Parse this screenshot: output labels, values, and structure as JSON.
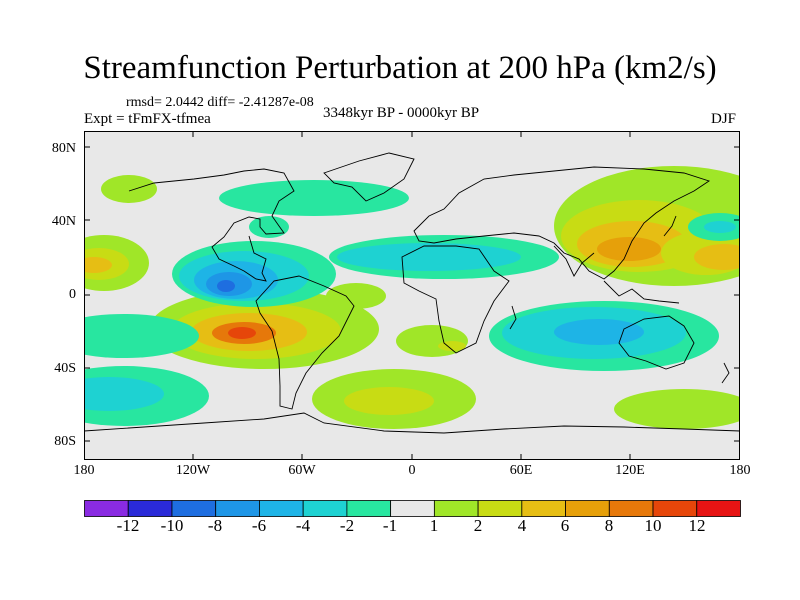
{
  "title": "Streamfunction Perturbation at 200 hPa (km2/s)",
  "stats": "rmsd= 2.0442 diff= -2.41287e-08",
  "experiment": "Expt = tFmFX-tfmea",
  "period": "3348kyr BP - 0000kyr BP",
  "season": "DJF",
  "map": {
    "lat_labels": [
      "80N",
      "40N",
      "0",
      "40S",
      "80S"
    ],
    "lon_labels": [
      "180",
      "120W",
      "60W",
      "0",
      "60E",
      "120E",
      "180"
    ],
    "background_color": "#e8e8e8"
  },
  "colorbar": {
    "labels": [
      "-12",
      "-10",
      "-8",
      "-6",
      "-4",
      "-2",
      "-1",
      "1",
      "2",
      "4",
      "6",
      "8",
      "10",
      "12"
    ],
    "colors": [
      "#8a2be2",
      "#2a2ad8",
      "#1e6ee0",
      "#1e96e6",
      "#1eb4e6",
      "#1ed2d2",
      "#28e6a0",
      "#e8e8e8",
      "#a0e628",
      "#c8dc14",
      "#e6be14",
      "#e6a00a",
      "#e6780a",
      "#e6460a",
      "#e61414"
    ]
  }
}
